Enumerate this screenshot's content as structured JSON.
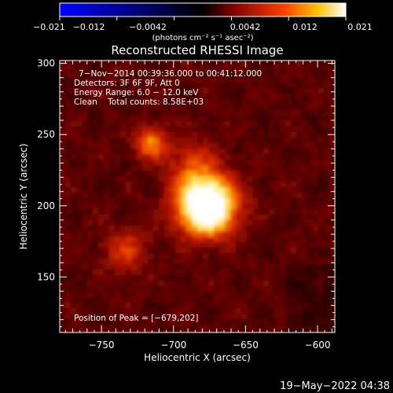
{
  "colorbar": {
    "ticks": [
      "−0.021",
      "−0.012",
      "−0.0042",
      "0.0042",
      "0.012",
      "0.021"
    ],
    "units_label": "(photons cm⁻² s⁻¹ asec⁻²)",
    "value_range": [
      -0.021,
      0.021
    ],
    "colors": [
      "#0000ff",
      "#000000",
      "#7a0000",
      "#ff3b00",
      "#ffc000",
      "#ffffff"
    ]
  },
  "image": {
    "title": "Reconstructed RHESSI Image",
    "info_lines": [
      "7−Nov−2014 00:39:36.000 to 00:41:12.000",
      "Detectors: 3F 6F 9F, Att 0",
      "Energy Range: 6.0 − 12.0 keV",
      "Clean    Total counts: 8.58E+03"
    ],
    "peak_text": "Position of Peak = [−679,202]",
    "peak": {
      "x": -679,
      "y": 202
    },
    "x_axis_label": "Heliocentric X (arcsec)",
    "y_axis_label": "Heliocentric Y (arcsec)",
    "x_range": [
      -779,
      -588
    ],
    "y_range": [
      111,
      302
    ],
    "x_ticks": [
      {
        "value": -750,
        "label": "−750"
      },
      {
        "value": -700,
        "label": "−700"
      },
      {
        "value": -650,
        "label": "−650"
      },
      {
        "value": -600,
        "label": "−600"
      }
    ],
    "y_ticks": [
      {
        "value": 150,
        "label": "150"
      },
      {
        "value": 200,
        "label": "200"
      },
      {
        "value": 250,
        "label": "250"
      },
      {
        "value": 300,
        "label": "300"
      }
    ]
  },
  "footer": {
    "timestamp": "19−May−2022 04:38"
  }
}
